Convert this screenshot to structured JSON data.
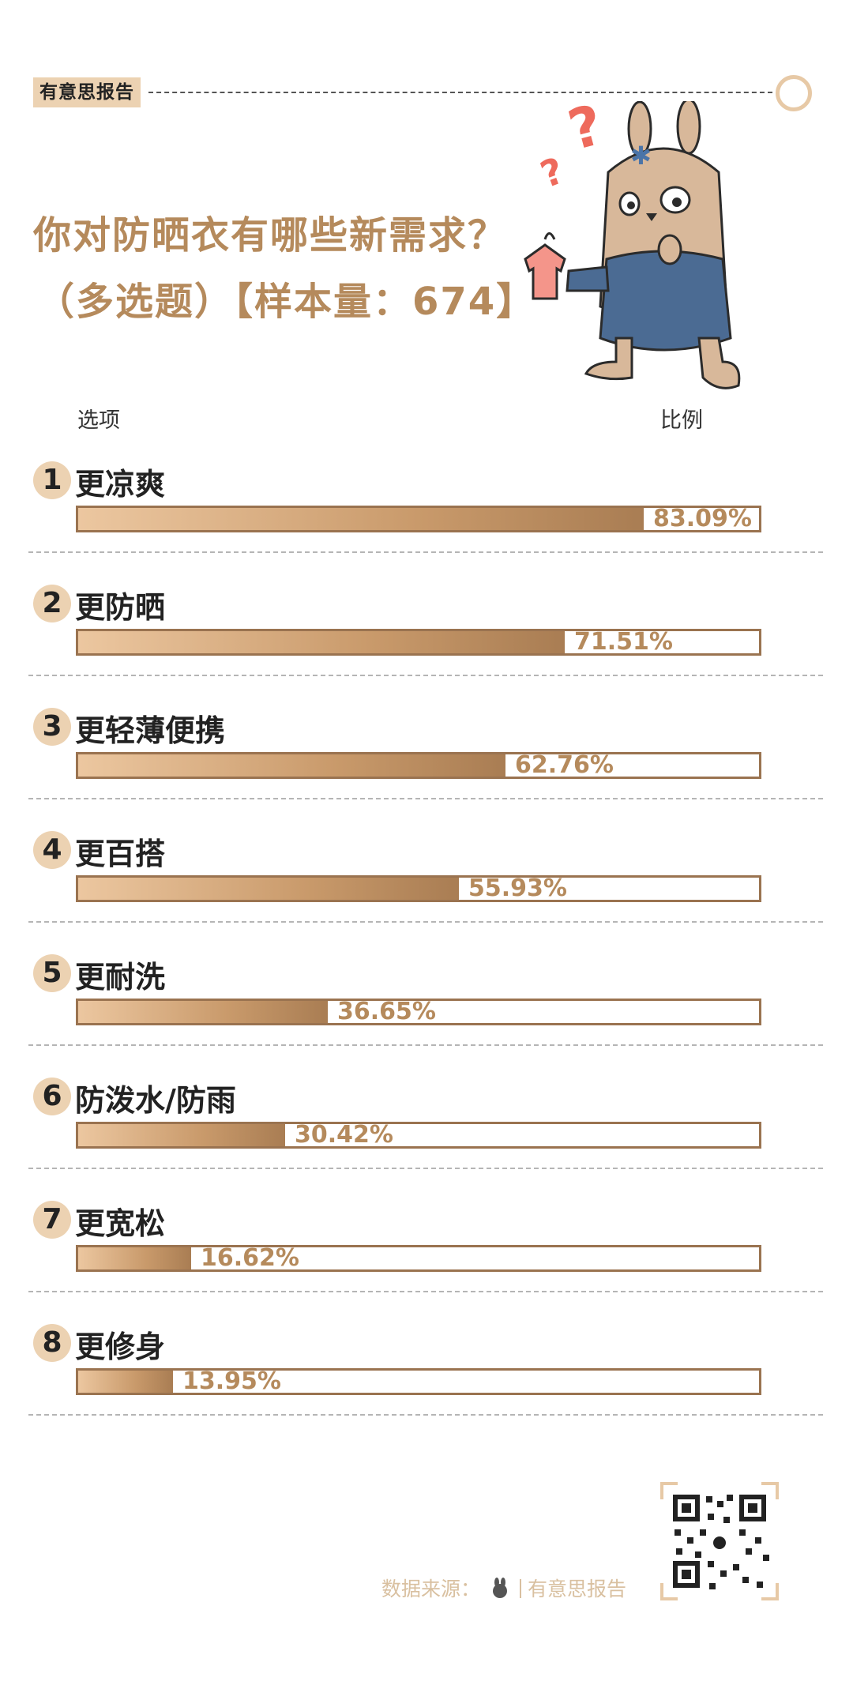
{
  "header": {
    "brand_tag": "有意思报告"
  },
  "title": "你对防晒衣有哪些新需求？",
  "subtitle": "（多选题）【样本量：674】",
  "columns": {
    "left": "选项",
    "right": "比例"
  },
  "colors": {
    "accent": "#b58a5c",
    "badge": "#ecd2b2",
    "bar_border": "#9a7350"
  },
  "icons": {
    "mascot": "rabbit-mascot-icon",
    "qr": "qr-code-icon"
  },
  "chart_data": {
    "type": "bar",
    "orientation": "horizontal",
    "xlim": [
      0,
      100
    ],
    "unit": "%",
    "items": [
      {
        "rank": "1",
        "label": "更凉爽",
        "value": 83.09,
        "value_label": "83.09%"
      },
      {
        "rank": "2",
        "label": "更防晒",
        "value": 71.51,
        "value_label": "71.51%"
      },
      {
        "rank": "3",
        "label": "更轻薄便携",
        "value": 62.76,
        "value_label": "62.76%"
      },
      {
        "rank": "4",
        "label": "更百搭",
        "value": 55.93,
        "value_label": "55.93%"
      },
      {
        "rank": "5",
        "label": "更耐洗",
        "value": 36.65,
        "value_label": "36.65%"
      },
      {
        "rank": "6",
        "label": "防泼水/防雨",
        "value": 30.42,
        "value_label": "30.42%"
      },
      {
        "rank": "7",
        "label": "更宽松",
        "value": 16.62,
        "value_label": "16.62%"
      },
      {
        "rank": "8",
        "label": "更修身",
        "value": 13.95,
        "value_label": "13.95%"
      }
    ]
  },
  "footer": {
    "source_label": "数据来源：",
    "source_name": "有意思报告"
  }
}
